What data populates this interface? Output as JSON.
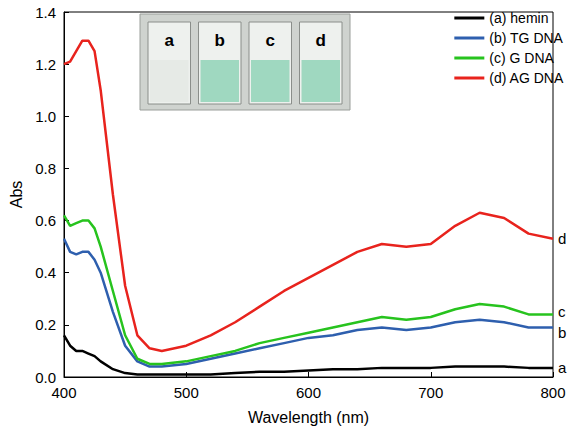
{
  "chart_data": {
    "type": "line",
    "x_label": "Wavelength (nm)",
    "y_label": "Abs",
    "x": [
      400,
      405,
      410,
      415,
      420,
      425,
      430,
      440,
      450,
      460,
      470,
      480,
      500,
      520,
      540,
      560,
      580,
      600,
      620,
      640,
      660,
      680,
      700,
      720,
      740,
      760,
      780,
      800
    ],
    "series": [
      {
        "name": "(a) hemin",
        "color": "#000000",
        "values": [
          0.16,
          0.12,
          0.1,
          0.1,
          0.09,
          0.08,
          0.06,
          0.03,
          0.015,
          0.01,
          0.01,
          0.01,
          0.01,
          0.01,
          0.015,
          0.02,
          0.02,
          0.025,
          0.03,
          0.03,
          0.035,
          0.035,
          0.035,
          0.04,
          0.04,
          0.04,
          0.035,
          0.035
        ]
      },
      {
        "name": "(b) TG DNA",
        "color": "#2e5fae",
        "values": [
          0.53,
          0.48,
          0.47,
          0.48,
          0.48,
          0.45,
          0.4,
          0.25,
          0.12,
          0.06,
          0.04,
          0.04,
          0.05,
          0.07,
          0.09,
          0.11,
          0.13,
          0.15,
          0.16,
          0.18,
          0.19,
          0.18,
          0.19,
          0.21,
          0.22,
          0.21,
          0.19,
          0.19
        ]
      },
      {
        "name": "(c) G DNA",
        "color": "#27c31e",
        "values": [
          0.62,
          0.58,
          0.59,
          0.6,
          0.6,
          0.57,
          0.5,
          0.33,
          0.16,
          0.07,
          0.05,
          0.05,
          0.06,
          0.08,
          0.1,
          0.13,
          0.15,
          0.17,
          0.19,
          0.21,
          0.23,
          0.22,
          0.23,
          0.26,
          0.28,
          0.27,
          0.24,
          0.24
        ]
      },
      {
        "name": "(d) AG DNA",
        "color": "#e8231d",
        "values": [
          1.2,
          1.21,
          1.25,
          1.29,
          1.29,
          1.25,
          1.1,
          0.7,
          0.35,
          0.16,
          0.11,
          0.1,
          0.12,
          0.16,
          0.21,
          0.27,
          0.33,
          0.38,
          0.43,
          0.48,
          0.51,
          0.5,
          0.51,
          0.58,
          0.63,
          0.61,
          0.55,
          0.53
        ]
      }
    ],
    "xlim": [
      400,
      800
    ],
    "xticks": [
      400,
      500,
      600,
      700,
      800
    ],
    "ylim": [
      0,
      1.4
    ],
    "yticks": [
      {
        "value": 0,
        "label": "0.0"
      },
      0.2,
      0.4,
      0.6,
      0.8,
      {
        "value": 1,
        "label": "1.0"
      },
      1.2,
      1.4
    ],
    "grid": false,
    "legend": "upper right",
    "annotations": [
      {
        "text": "a",
        "x": 800,
        "y": 0.035
      },
      {
        "text": "b",
        "x": 800,
        "y": 0.17
      },
      {
        "text": "c",
        "x": 800,
        "y": 0.25
      },
      {
        "text": "d",
        "x": 800,
        "y": 0.53
      }
    ],
    "inset": {
      "labels": [
        "a",
        "b",
        "c",
        "d"
      ]
    }
  }
}
